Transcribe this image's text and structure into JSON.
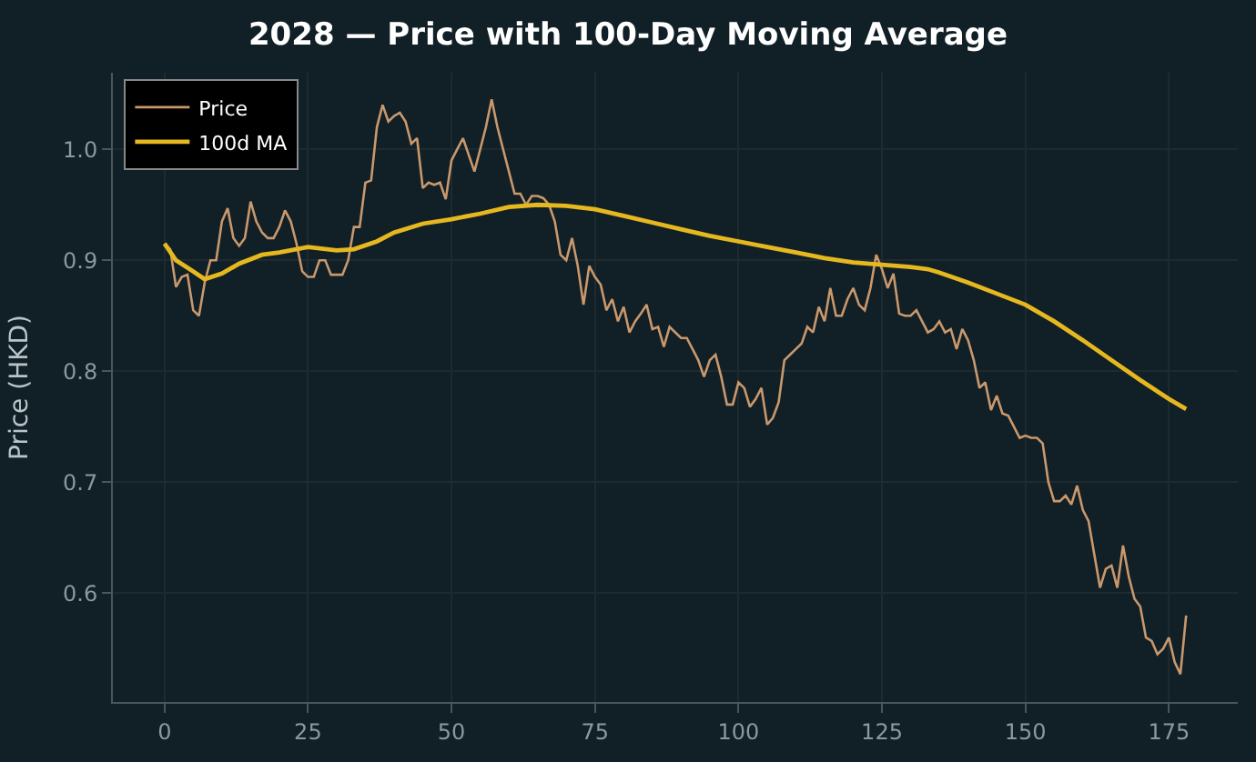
{
  "chart_data": {
    "type": "line",
    "title": "2028 — Price with 100-Day Moving Average",
    "ylabel": "Price (HKD)",
    "xlim": [
      -9,
      187
    ],
    "xticks": [
      0,
      25,
      50,
      75,
      100,
      125,
      150,
      175
    ],
    "ylim": [
      0.502,
      1.069
    ],
    "yticks": [
      0.6,
      0.7,
      0.8,
      0.9,
      {
        "value": 1,
        "label": "1.0"
      }
    ],
    "grid": true,
    "legend": "top left",
    "line_style": "solid",
    "marker": "none",
    "series": [
      {
        "name": "Price",
        "color": "#c9986c",
        "x": [
          0,
          1,
          2,
          3,
          4,
          5,
          6,
          7,
          8,
          9,
          10,
          11,
          12,
          13,
          14,
          15,
          16,
          17,
          18,
          19,
          20,
          21,
          22,
          23,
          24,
          25,
          26,
          27,
          28,
          29,
          31,
          32,
          33,
          34,
          35,
          36,
          37,
          38,
          39,
          40,
          41,
          42,
          43,
          44,
          45,
          46,
          47,
          48,
          49,
          50,
          51,
          52,
          53,
          54,
          55,
          56,
          57,
          58,
          59,
          60,
          61,
          62,
          63,
          64,
          65,
          66,
          67,
          68,
          69,
          70,
          71,
          72,
          73,
          74,
          75,
          76,
          77,
          78,
          79,
          80,
          81,
          82,
          83,
          84,
          85,
          86,
          87,
          88,
          90,
          91,
          92,
          93,
          94,
          95,
          96,
          97,
          98,
          99,
          100,
          101,
          102,
          103,
          104,
          105,
          106,
          107,
          108,
          109,
          110,
          111,
          112,
          113,
          114,
          115,
          116,
          117,
          118,
          119,
          120,
          121,
          122,
          123,
          124,
          125,
          126,
          127,
          128,
          129,
          130,
          131,
          132,
          133,
          134,
          135,
          136,
          137,
          138,
          139,
          140,
          141,
          142,
          143,
          144,
          145,
          146,
          147,
          149,
          150,
          151,
          152,
          153,
          154,
          155,
          156,
          157,
          158,
          159,
          160,
          161,
          162,
          163,
          164,
          165,
          166,
          167,
          168,
          169,
          170,
          171,
          172,
          173,
          174,
          175,
          176,
          177,
          178
        ],
        "values": [
          0.915,
          0.91,
          0.876,
          0.885,
          0.887,
          0.855,
          0.85,
          0.88,
          0.9,
          0.9,
          0.935,
          0.947,
          0.92,
          0.913,
          0.92,
          0.953,
          0.935,
          0.925,
          0.92,
          0.92,
          0.93,
          0.945,
          0.935,
          0.915,
          0.89,
          0.885,
          0.885,
          0.9,
          0.9,
          0.887,
          0.887,
          0.9,
          0.93,
          0.93,
          0.97,
          0.972,
          1.02,
          1.04,
          1.025,
          1.03,
          1.033,
          1.025,
          1.005,
          1.01,
          0.965,
          0.97,
          0.968,
          0.97,
          0.955,
          0.99,
          1.0,
          1.01,
          0.995,
          0.98,
          1.0,
          1.02,
          1.045,
          1.02,
          1.0,
          0.98,
          0.96,
          0.96,
          0.95,
          0.958,
          0.958,
          0.956,
          0.95,
          0.935,
          0.905,
          0.9,
          0.92,
          0.895,
          0.86,
          0.895,
          0.885,
          0.878,
          0.855,
          0.865,
          0.845,
          0.858,
          0.835,
          0.845,
          0.852,
          0.86,
          0.838,
          0.84,
          0.822,
          0.84,
          0.83,
          0.83,
          0.82,
          0.81,
          0.795,
          0.81,
          0.815,
          0.795,
          0.77,
          0.77,
          0.79,
          0.785,
          0.768,
          0.775,
          0.785,
          0.752,
          0.758,
          0.772,
          0.81,
          0.815,
          0.82,
          0.825,
          0.84,
          0.835,
          0.858,
          0.845,
          0.875,
          0.85,
          0.85,
          0.865,
          0.875,
          0.86,
          0.855,
          0.875,
          0.905,
          0.892,
          0.875,
          0.888,
          0.852,
          0.85,
          0.85,
          0.855,
          0.845,
          0.835,
          0.838,
          0.845,
          0.835,
          0.838,
          0.82,
          0.838,
          0.828,
          0.81,
          0.785,
          0.79,
          0.765,
          0.778,
          0.762,
          0.76,
          0.74,
          0.742,
          0.74,
          0.74,
          0.735,
          0.7,
          0.683,
          0.683,
          0.688,
          0.68,
          0.697,
          0.675,
          0.665,
          0.635,
          0.605,
          0.622,
          0.625,
          0.605,
          0.643,
          0.615,
          0.595,
          0.588,
          0.56,
          0.557,
          0.545,
          0.55,
          0.56,
          0.538,
          0.527,
          0.58
        ]
      },
      {
        "name": "100d MA",
        "color": "#e6b820",
        "x": [
          0,
          2,
          5,
          7,
          10,
          13,
          17,
          20,
          25,
          30,
          33,
          37,
          40,
          45,
          50,
          55,
          60,
          65,
          70,
          75,
          80,
          85,
          90,
          95,
          100,
          105,
          110,
          115,
          120,
          125,
          130,
          133,
          135,
          140,
          145,
          150,
          155,
          160,
          165,
          170,
          175,
          178
        ],
        "values": [
          0.915,
          0.9,
          0.89,
          0.883,
          0.888,
          0.897,
          0.905,
          0.907,
          0.912,
          0.909,
          0.91,
          0.917,
          0.925,
          0.933,
          0.937,
          0.942,
          0.948,
          0.95,
          0.949,
          0.946,
          0.94,
          0.934,
          0.928,
          0.922,
          0.917,
          0.912,
          0.907,
          0.902,
          0.898,
          0.896,
          0.894,
          0.892,
          0.889,
          0.88,
          0.87,
          0.86,
          0.845,
          0.828,
          0.81,
          0.792,
          0.775,
          0.766
        ]
      }
    ]
  }
}
